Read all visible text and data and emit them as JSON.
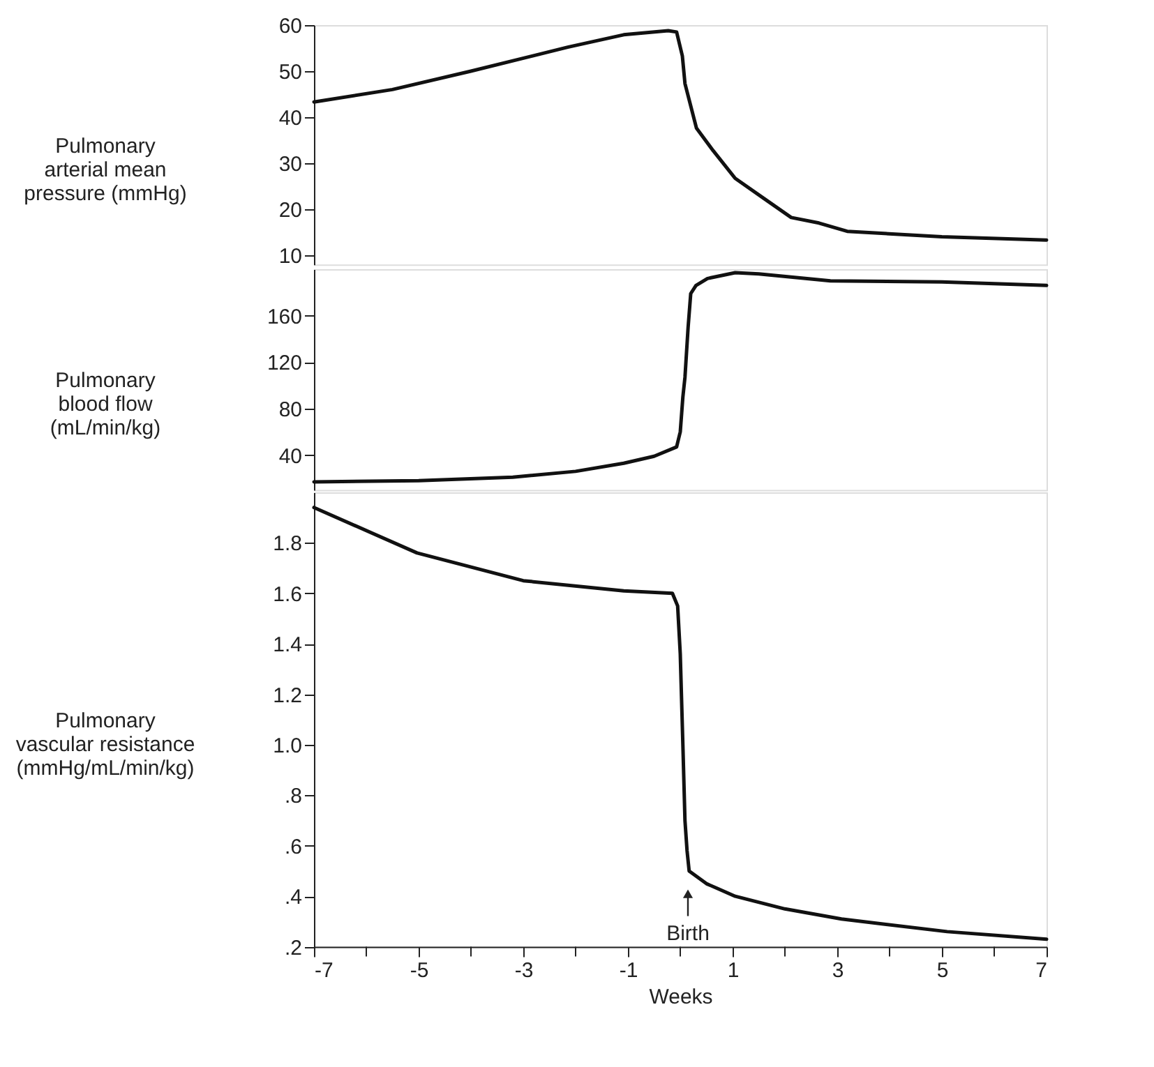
{
  "chart_data": [
    {
      "type": "line",
      "ylabel": "Pulmonary\narterial mean\npressure (mmHg)",
      "tick_labels": "y",
      "grid": false,
      "line_style": "solid",
      "xlim": [
        -7,
        7
      ],
      "ylim": [
        8,
        60
      ],
      "yticks": [
        10,
        20,
        30,
        40,
        50,
        60
      ],
      "series": [
        {
          "color": "#111111",
          "x": [
            -7,
            -5.5,
            -4.0,
            -2.15,
            -1.08,
            -0.23,
            -0.07,
            0.04,
            0.09,
            0.31,
            0.63,
            1.05,
            1.59,
            2.12,
            2.65,
            3.19,
            5,
            7
          ],
          "values": [
            43.3,
            46,
            50,
            55.2,
            57.9,
            58.8,
            58.5,
            53.3,
            47.3,
            37.6,
            32.7,
            26.7,
            22.4,
            18.2,
            17,
            15.2,
            14,
            13.3
          ]
        }
      ]
    },
    {
      "type": "line",
      "ylabel": "Pulmonary\nblood flow\n(mL/min/kg)",
      "tick_labels": "y",
      "grid": false,
      "line_style": "solid",
      "xlim": [
        -7,
        7
      ],
      "ylim": [
        10,
        200
      ],
      "yticks": [
        40,
        80,
        120,
        160
      ],
      "series": [
        {
          "color": "#111111",
          "x": [
            -7,
            -5,
            -3.2,
            -2,
            -1.08,
            -0.5,
            -0.07,
            0.0,
            0.05,
            0.09,
            0.15,
            0.2,
            0.3,
            0.52,
            1.05,
            1.5,
            2.87,
            5,
            7
          ],
          "values": [
            17,
            18,
            21,
            26,
            33,
            39,
            47,
            60,
            90,
            107,
            150,
            179,
            186,
            192,
            197,
            196,
            190,
            189,
            186
          ]
        }
      ]
    },
    {
      "type": "line",
      "ylabel": "Pulmonary\nvascular resistance\n(mmHg/mL/min/kg)",
      "xlabel": "Weeks",
      "grid": false,
      "line_style": "solid",
      "xlim": [
        -7,
        7
      ],
      "ylim": [
        0.2,
        2.0
      ],
      "xticks": [
        -7,
        {
          "value": -6,
          "label": null
        },
        -5,
        {
          "value": -4,
          "label": null
        },
        -3,
        {
          "value": -2,
          "label": null
        },
        -1,
        {
          "value": 0,
          "label": null
        },
        1,
        {
          "value": 2,
          "label": null
        },
        3,
        {
          "value": 4,
          "label": null
        },
        5,
        {
          "value": 6,
          "label": null
        },
        7
      ],
      "yticks": [
        {
          "value": 0.2,
          "label": ".2"
        },
        {
          "value": 0.4,
          "label": ".4"
        },
        {
          "value": 0.6,
          "label": ".6"
        },
        {
          "value": 0.8,
          "label": ".8"
        },
        {
          "value": 1.0,
          "label": "1.0"
        },
        {
          "value": 1.2,
          "label": "1.2"
        },
        {
          "value": 1.4,
          "label": "1.4"
        },
        {
          "value": 1.6,
          "label": "1.6"
        },
        {
          "value": 1.8,
          "label": "1.8"
        }
      ],
      "annotations": [
        "Birth"
      ],
      "series": [
        {
          "color": "#111111",
          "x": [
            -7,
            -5.03,
            -3,
            -1.08,
            -0.15,
            -0.05,
            0.0,
            0.05,
            0.09,
            0.13,
            0.17,
            0.5,
            1.05,
            2,
            3.08,
            5.1,
            7
          ],
          "values": [
            1.94,
            1.76,
            1.65,
            1.61,
            1.6,
            1.55,
            1.36,
            1.0,
            0.7,
            0.58,
            0.5,
            0.45,
            0.4,
            0.35,
            0.31,
            0.26,
            0.23
          ]
        }
      ]
    }
  ]
}
